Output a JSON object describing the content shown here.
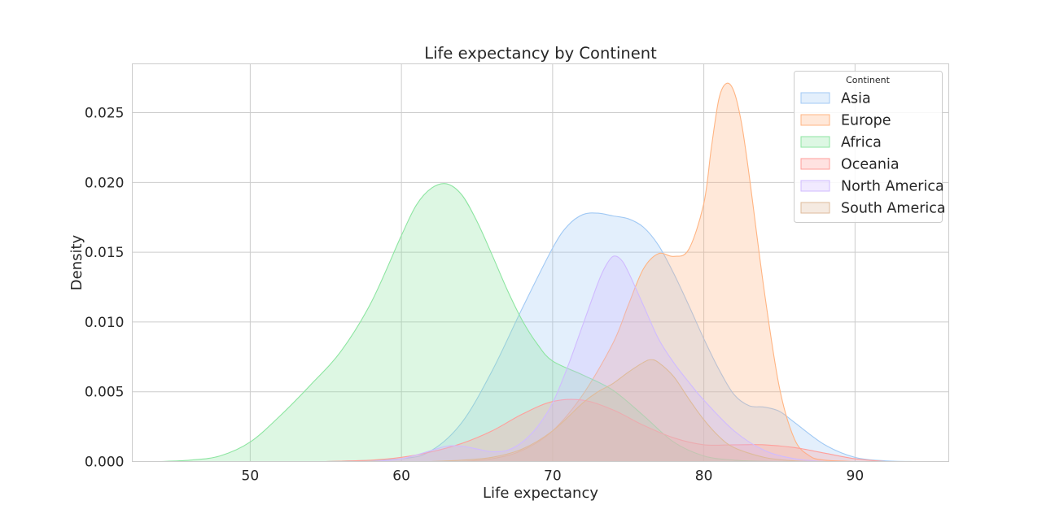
{
  "chart_data": {
    "type": "area",
    "title": "Life expectancy by Continent",
    "xlabel": "Life expectancy",
    "ylabel": "Density",
    "xlim": [
      42.2,
      96.2
    ],
    "ylim": [
      0,
      0.0285
    ],
    "xticks": [
      50,
      60,
      70,
      80,
      90
    ],
    "xtick_labels": [
      "50",
      "60",
      "70",
      "80",
      "90"
    ],
    "yticks": [
      0,
      0.005,
      0.01,
      0.015,
      0.02,
      0.025
    ],
    "ytick_labels": [
      "0.000",
      "0.005",
      "0.010",
      "0.015",
      "0.020",
      "0.025"
    ],
    "grid": true,
    "legend": {
      "title": "Continent",
      "placement": "top-right"
    },
    "series": [
      {
        "name": "Asia",
        "color": "#a1c9f4",
        "x": [
          55,
          60,
          62,
          64,
          66,
          68,
          70,
          71,
          72,
          73,
          74,
          75,
          76,
          77,
          78,
          79,
          80,
          81,
          82,
          83,
          84,
          85,
          86,
          88,
          90,
          92,
          94
        ],
        "y": [
          0,
          0.0002,
          0.0008,
          0.0028,
          0.0065,
          0.011,
          0.0153,
          0.0169,
          0.0177,
          0.0178,
          0.0176,
          0.0174,
          0.0168,
          0.0155,
          0.0135,
          0.0112,
          0.0088,
          0.0066,
          0.0048,
          0.004,
          0.0039,
          0.0036,
          0.0028,
          0.0012,
          0.0003,
          5e-05,
          0
        ]
      },
      {
        "name": "Europe",
        "color": "#ffb482",
        "x": [
          64,
          66,
          68,
          70,
          72,
          74,
          75,
          76,
          77,
          78,
          79,
          80,
          80.5,
          81,
          81.5,
          82,
          82.5,
          83,
          84,
          85,
          86,
          87,
          88,
          90
        ],
        "y": [
          0,
          0.0002,
          0.0008,
          0.0022,
          0.0048,
          0.0085,
          0.0112,
          0.0138,
          0.0149,
          0.0147,
          0.0152,
          0.0185,
          0.0225,
          0.026,
          0.0271,
          0.0265,
          0.0242,
          0.0205,
          0.0122,
          0.0053,
          0.0016,
          0.0004,
          0.0001,
          0
        ]
      },
      {
        "name": "Africa",
        "color": "#8de5a1",
        "x": [
          44,
          46,
          48,
          50,
          52,
          54,
          56,
          58,
          60,
          61,
          62,
          63,
          64,
          65,
          66,
          67,
          68,
          69,
          70,
          72,
          74,
          76,
          78,
          80,
          82,
          84,
          86
        ],
        "y": [
          0,
          0.0001,
          0.0004,
          0.0014,
          0.0033,
          0.0055,
          0.0079,
          0.0114,
          0.0162,
          0.0184,
          0.0196,
          0.0199,
          0.0191,
          0.0172,
          0.0148,
          0.0123,
          0.0101,
          0.0084,
          0.0072,
          0.0062,
          0.0051,
          0.0033,
          0.0014,
          0.0004,
          0.0001,
          2e-05,
          0
        ]
      },
      {
        "name": "Oceania",
        "color": "#ff9f9b",
        "x": [
          55,
          58,
          60,
          62,
          64,
          66,
          68,
          70,
          72,
          74,
          76,
          78,
          80,
          82,
          84,
          86,
          88,
          90,
          92
        ],
        "y": [
          0,
          0.0001,
          0.0003,
          0.0007,
          0.0013,
          0.0022,
          0.0034,
          0.0043,
          0.0044,
          0.0037,
          0.0026,
          0.0017,
          0.0012,
          0.0012,
          0.0012,
          0.001,
          0.0006,
          0.0002,
          0
        ]
      },
      {
        "name": "North America",
        "color": "#d0bbff",
        "x": [
          58,
          60,
          62,
          63,
          64,
          65,
          66,
          67,
          68,
          69,
          70,
          71,
          72,
          73,
          73.5,
          74,
          74.5,
          75,
          76,
          77,
          78,
          79,
          80,
          82,
          84,
          86,
          88
        ],
        "y": [
          0,
          0.0002,
          0.0008,
          0.0011,
          0.0011,
          0.0009,
          0.0007,
          0.0008,
          0.0014,
          0.0025,
          0.0042,
          0.0068,
          0.0098,
          0.0128,
          0.014,
          0.0147,
          0.0145,
          0.0136,
          0.0112,
          0.0088,
          0.0071,
          0.0057,
          0.0044,
          0.0022,
          0.0008,
          0.0002,
          0
        ]
      },
      {
        "name": "South America",
        "color": "#debb9b",
        "x": [
          62,
          64,
          66,
          68,
          70,
          72,
          73,
          74,
          75,
          76,
          76.5,
          77,
          78,
          79,
          80,
          81,
          82,
          84,
          86,
          88
        ],
        "y": [
          0,
          0.0001,
          0.0003,
          0.0009,
          0.0022,
          0.0042,
          0.005,
          0.0056,
          0.0064,
          0.0071,
          0.0073,
          0.0071,
          0.0061,
          0.0045,
          0.003,
          0.0018,
          0.001,
          0.0003,
          5e-05,
          0
        ]
      }
    ]
  }
}
